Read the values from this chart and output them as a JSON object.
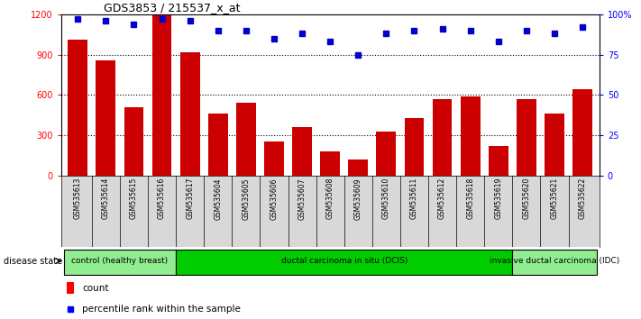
{
  "title": "GDS3853 / 215537_x_at",
  "samples": [
    "GSM535613",
    "GSM535614",
    "GSM535615",
    "GSM535616",
    "GSM535617",
    "GSM535604",
    "GSM535605",
    "GSM535606",
    "GSM535607",
    "GSM535608",
    "GSM535609",
    "GSM535610",
    "GSM535611",
    "GSM535612",
    "GSM535618",
    "GSM535619",
    "GSM535620",
    "GSM535621",
    "GSM535622"
  ],
  "counts": [
    1010,
    860,
    510,
    1190,
    920,
    460,
    540,
    250,
    360,
    180,
    120,
    330,
    430,
    570,
    590,
    220,
    570,
    460,
    640
  ],
  "percentiles": [
    97,
    96,
    94,
    97,
    96,
    90,
    90,
    85,
    88,
    83,
    75,
    88,
    90,
    91,
    90,
    83,
    90,
    88,
    92
  ],
  "bar_color": "#CC0000",
  "dot_color": "#0000CC",
  "ylim_left": [
    0,
    1200
  ],
  "ylim_right": [
    0,
    100
  ],
  "yticks_left": [
    0,
    300,
    600,
    900,
    1200
  ],
  "yticks_right": [
    0,
    25,
    50,
    75,
    100
  ],
  "right_tick_labels": [
    "0",
    "25",
    "50",
    "75",
    "100%"
  ],
  "grid_values": [
    300,
    600,
    900
  ],
  "group_labels": [
    "control (healthy breast)",
    "ductal carcinoma in situ (DCIS)",
    "invasive ductal carcinoma (IDC)"
  ],
  "group_ranges": [
    [
      0,
      4
    ],
    [
      4,
      16
    ],
    [
      16,
      19
    ]
  ],
  "group_colors": [
    "#90EE90",
    "#00CC00",
    "#90EE90"
  ],
  "legend_count": "count",
  "legend_pct": "percentile rank within the sample",
  "disease_state_label": "disease state"
}
